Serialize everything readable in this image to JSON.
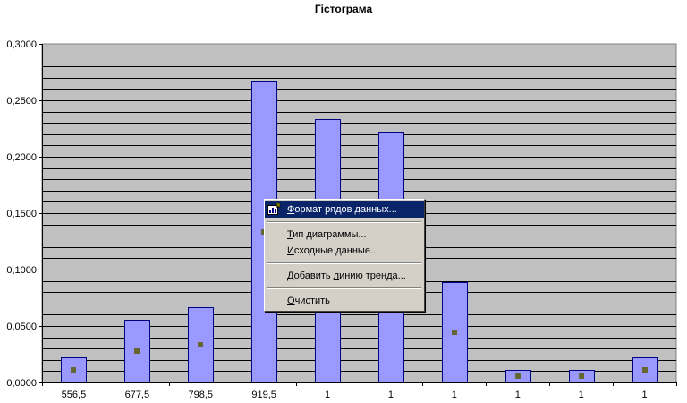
{
  "chart_data": {
    "type": "bar",
    "title": "Гістограма",
    "categories": [
      "556,5",
      "677,5",
      "798,5",
      "919,5",
      "1",
      "1",
      "1",
      "1",
      "1",
      "1"
    ],
    "series": [
      {
        "type": "bar",
        "values": [
          0.0222,
          0.0556,
          0.0667,
          0.2667,
          0.2333,
          0.2222,
          0.0889,
          0.0111,
          0.0111,
          0.0222
        ]
      },
      {
        "type": "scatter",
        "values": [
          0.0111,
          0.0278,
          0.0333,
          0.1333,
          0.1167,
          0.1111,
          0.0444,
          0.0056,
          0.0056,
          0.0111
        ]
      }
    ],
    "ylim": [
      0,
      0.3
    ],
    "yticks": [
      "0,0000",
      "0,0500",
      "0,1000",
      "0,1500",
      "0,2000",
      "0,2500",
      "0,3000"
    ],
    "yaxis_tick_values": [
      0,
      0.05,
      0.1,
      0.15,
      0.2,
      0.25,
      0.3
    ],
    "grid": true,
    "colors": {
      "plot_background": "#c0c0c0",
      "bar_fill": "#9999ff",
      "bar_edge": "#000080",
      "marker": "#666633",
      "gridline": "#000000"
    }
  },
  "context_menu": {
    "items": [
      {
        "label": "Формат рядов данных...",
        "accel_prefix": "",
        "accel_char": "Ф",
        "accel_rest": "ормат рядов данных...",
        "selected": true,
        "icon": "format-data-series-icon"
      },
      {
        "label": "Тип диаграммы...",
        "accel_prefix": "",
        "accel_char": "Т",
        "accel_rest": "ип диаграммы..."
      },
      {
        "label": "Исходные данные...",
        "accel_prefix": "",
        "accel_char": "И",
        "accel_rest": "сходные данные..."
      },
      {
        "label": "Добавить линию тренда...",
        "accel_prefix": "Добавить ",
        "accel_char": "л",
        "accel_rest": "инию тренда..."
      },
      {
        "label": "Очистить",
        "accel_prefix": "",
        "accel_char": "О",
        "accel_rest": "чистить"
      }
    ]
  }
}
